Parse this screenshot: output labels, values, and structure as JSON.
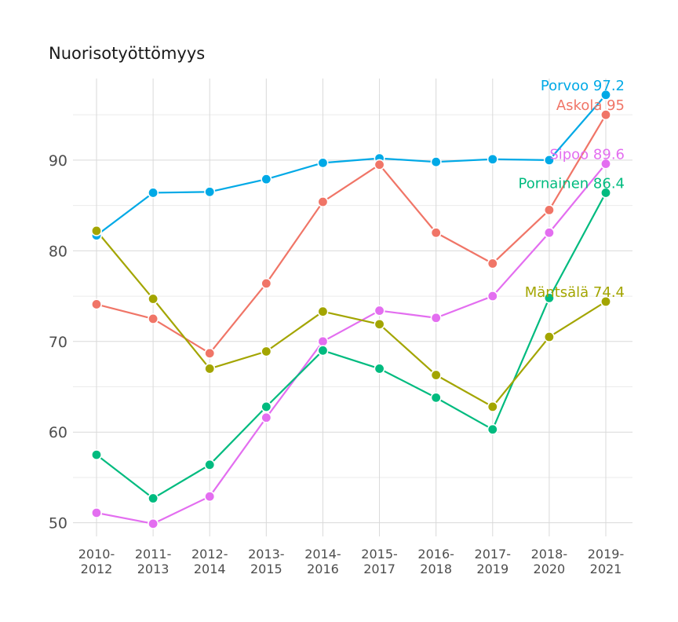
{
  "chart_data": {
    "type": "line",
    "title": "Nuorisotyöttömyys",
    "xlabel": "",
    "ylabel": "",
    "categories": [
      [
        "2010-",
        "2012"
      ],
      [
        "2011-",
        "2013"
      ],
      [
        "2012-",
        "2014"
      ],
      [
        "2013-",
        "2015"
      ],
      [
        "2014-",
        "2016"
      ],
      [
        "2015-",
        "2017"
      ],
      [
        "2016-",
        "2018"
      ],
      [
        "2017-",
        "2019"
      ],
      [
        "2018-",
        "2020"
      ],
      [
        "2019-",
        "2021"
      ]
    ],
    "ylim": [
      48.5,
      99
    ],
    "yticks": [
      50,
      60,
      70,
      80,
      90
    ],
    "grid": true,
    "legend": "end-labels",
    "series": [
      {
        "name": "Porvoo",
        "color": "#00A9E6",
        "end_label": "Porvoo 97.2",
        "values": [
          81.7,
          86.4,
          86.5,
          87.9,
          89.7,
          90.2,
          89.8,
          90.1,
          90.0,
          97.2
        ]
      },
      {
        "name": "Askola",
        "color": "#F07567",
        "end_label": "Askola 95",
        "values": [
          74.1,
          72.5,
          68.7,
          76.4,
          85.4,
          89.5,
          82.0,
          78.6,
          84.5,
          95.0
        ]
      },
      {
        "name": "Sipoo",
        "color": "#E36EF0",
        "end_label": "Sipoo 89.6",
        "values": [
          51.1,
          49.9,
          52.9,
          61.6,
          70.0,
          73.4,
          72.6,
          75.0,
          82.0,
          89.6
        ]
      },
      {
        "name": "Pornainen",
        "color": "#00BB7F",
        "end_label": "Pornainen 86.4",
        "values": [
          57.5,
          52.7,
          56.4,
          62.8,
          69.0,
          67.0,
          63.8,
          60.3,
          74.8,
          86.4
        ]
      },
      {
        "name": "Mäntsälä",
        "color": "#A3A500",
        "end_label": "Mäntsälä 74.4",
        "values": [
          82.2,
          74.7,
          67.0,
          68.9,
          73.3,
          71.9,
          66.3,
          62.8,
          70.5,
          74.4
        ]
      }
    ]
  }
}
